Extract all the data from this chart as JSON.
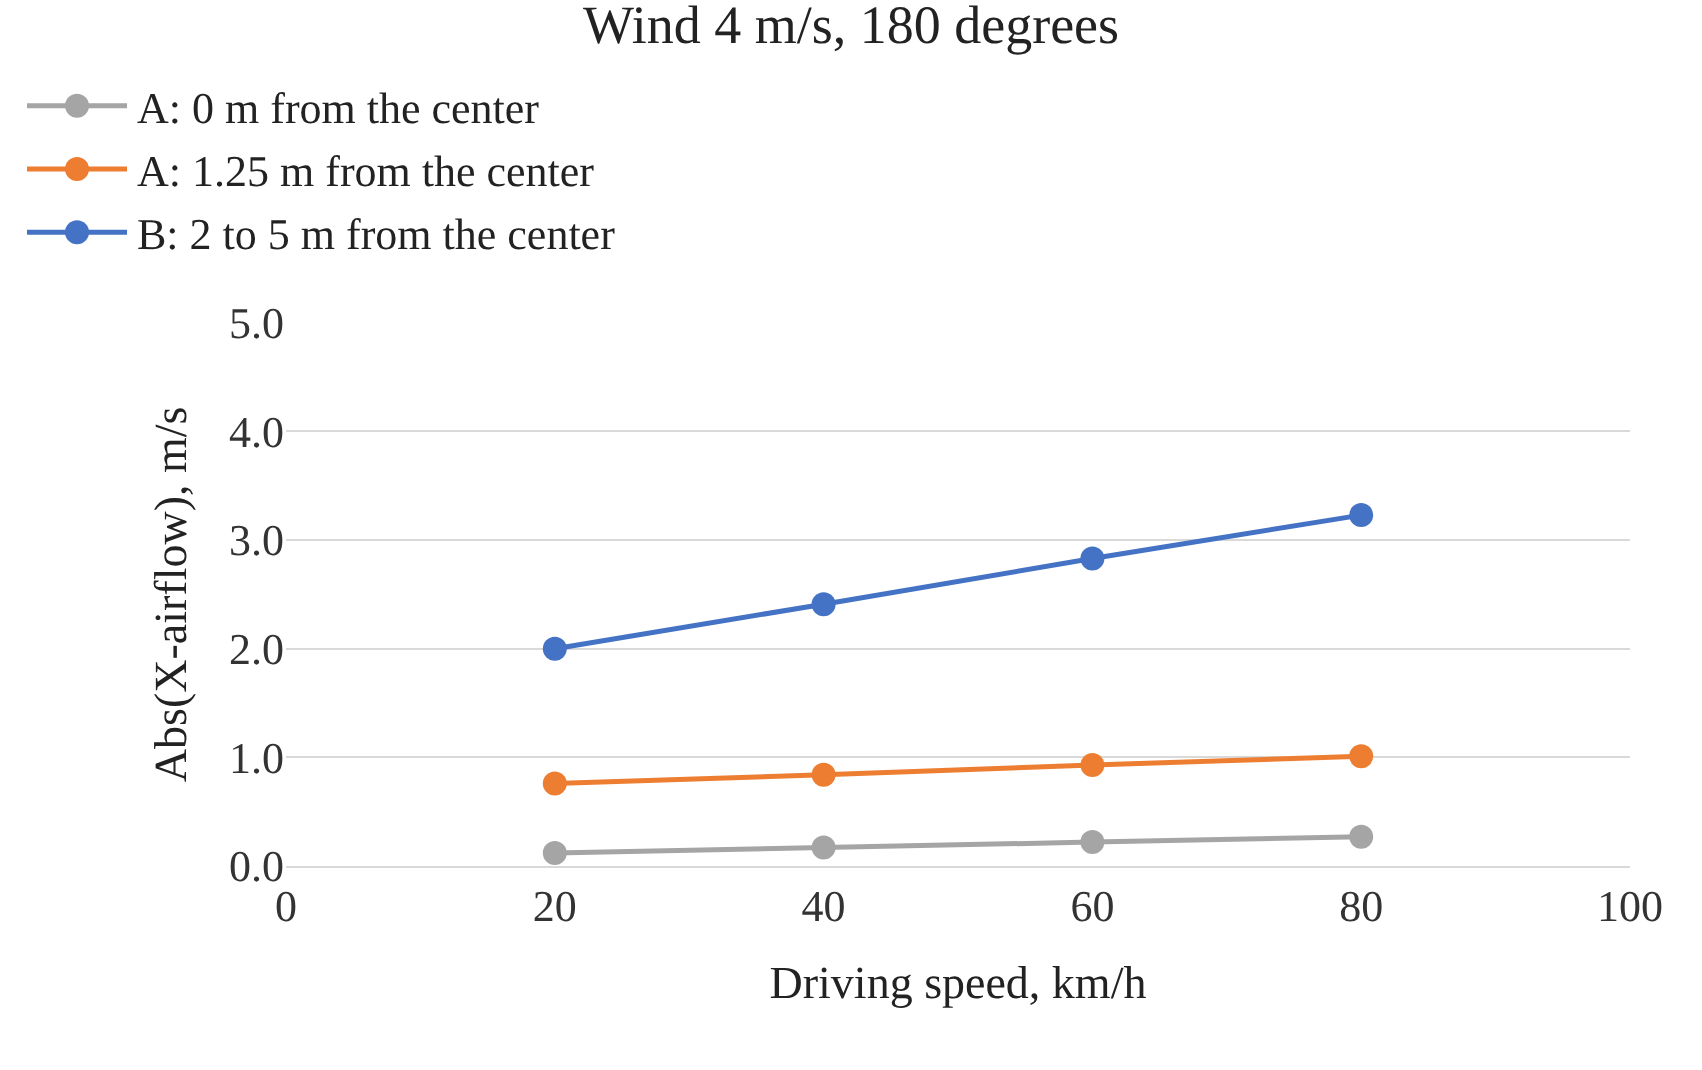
{
  "chart_data": {
    "type": "line",
    "title": "Wind 4 m/s, 180 degrees",
    "xlabel": "Driving speed, km/h",
    "ylabel": "Abs(X-airflow), m/s",
    "x": [
      20,
      40,
      60,
      80
    ],
    "series": [
      {
        "name": "A: 0 m from the center",
        "color": "#a5a5a5",
        "values": [
          0.12,
          0.17,
          0.22,
          0.27
        ]
      },
      {
        "name": "A: 1.25 m from the center",
        "color": "#ed7d31",
        "values": [
          0.76,
          0.84,
          0.93,
          1.01
        ]
      },
      {
        "name": "B: 2 to 5 m from the center",
        "color": "#4472c4",
        "values": [
          2.0,
          2.41,
          2.83,
          3.23
        ]
      }
    ],
    "xlim": [
      0,
      100
    ],
    "xticks": [
      0,
      20,
      40,
      60,
      80,
      100
    ],
    "ylim": [
      0,
      5
    ],
    "yticks": [
      {
        "value": 0,
        "label": "0.0"
      },
      {
        "value": 1,
        "label": "1.0"
      },
      {
        "value": 2,
        "label": "2.0"
      },
      {
        "value": 3,
        "label": "3.0"
      },
      {
        "value": 4,
        "label": "4.0"
      },
      {
        "value": 5,
        "label": "5.0"
      }
    ],
    "grid": "y",
    "legend": "top",
    "marker": "circle",
    "line_style": "solid"
  }
}
